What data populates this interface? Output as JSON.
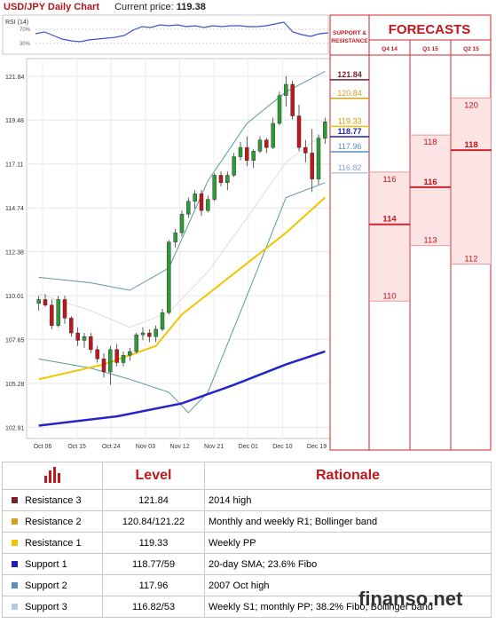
{
  "header": {
    "title": "USD/JPY Daily Chart",
    "price_label": "Current price:",
    "price_value": "119.38"
  },
  "rsi": {
    "label": "RSI (14)",
    "ticks": [
      "70%",
      "30%"
    ]
  },
  "colors": {
    "resistance3": "#7b1e2e",
    "resistance2": "#d4a017",
    "resistance1": "#f2c400",
    "support1": "#1f1fbf",
    "support2": "#5b8fbf",
    "support3": "#b8c8e0",
    "forecast_line": "#d0252b",
    "forecast_fill": "#fde4e4"
  },
  "chart_data": {
    "type": "candlestick",
    "y_ticks": [
      "121.84",
      "119.48",
      "117.11",
      "114.74",
      "112.38",
      "110.01",
      "107.65",
      "105.28",
      "102.91"
    ],
    "x_ticks": [
      "Oct 06",
      "Oct 15",
      "Oct 24",
      "Nov 03",
      "Nov 12",
      "Nov 21",
      "Dec 01",
      "Dec 10",
      "Dec 19"
    ],
    "ylim": [
      102.5,
      122.6
    ],
    "candles": [
      [
        109.6,
        110.0,
        109.2,
        109.8
      ],
      [
        109.8,
        110.1,
        109.4,
        109.5
      ],
      [
        109.5,
        109.8,
        108.2,
        108.4
      ],
      [
        108.4,
        110.0,
        108.3,
        109.8
      ],
      [
        109.8,
        110.0,
        108.5,
        108.8
      ],
      [
        108.8,
        108.9,
        107.8,
        108.0
      ],
      [
        108.0,
        108.3,
        107.3,
        107.6
      ],
      [
        107.6,
        108.0,
        107.2,
        107.8
      ],
      [
        107.8,
        108.0,
        106.9,
        107.1
      ],
      [
        107.1,
        107.3,
        106.4,
        106.6
      ],
      [
        106.6,
        106.9,
        105.6,
        105.9
      ],
      [
        105.9,
        107.3,
        105.2,
        107.1
      ],
      [
        107.1,
        107.4,
        106.2,
        106.4
      ],
      [
        106.4,
        107.0,
        106.2,
        106.8
      ],
      [
        106.8,
        107.2,
        106.5,
        107.0
      ],
      [
        107.0,
        108.0,
        106.9,
        107.9
      ],
      [
        107.9,
        108.3,
        107.6,
        108.0
      ],
      [
        108.0,
        108.2,
        107.5,
        107.8
      ],
      [
        107.8,
        108.4,
        107.5,
        108.2
      ],
      [
        108.2,
        109.3,
        108.1,
        109.1
      ],
      [
        109.1,
        113.0,
        109.0,
        112.9
      ],
      [
        112.9,
        113.6,
        112.6,
        113.4
      ],
      [
        113.4,
        114.6,
        113.2,
        114.4
      ],
      [
        114.4,
        115.3,
        114.2,
        115.1
      ],
      [
        115.1,
        115.7,
        114.7,
        115.5
      ],
      [
        115.5,
        115.7,
        114.3,
        114.6
      ],
      [
        114.6,
        115.4,
        114.5,
        115.2
      ],
      [
        115.2,
        116.6,
        115.1,
        116.5
      ],
      [
        116.5,
        116.7,
        115.9,
        116.1
      ],
      [
        116.1,
        116.7,
        115.7,
        116.5
      ],
      [
        116.5,
        117.7,
        116.4,
        117.5
      ],
      [
        117.5,
        118.3,
        117.3,
        118.0
      ],
      [
        118.0,
        118.6,
        117.0,
        117.3
      ],
      [
        117.3,
        117.9,
        116.9,
        117.8
      ],
      [
        117.8,
        118.6,
        117.7,
        118.4
      ],
      [
        118.4,
        118.5,
        117.7,
        118.0
      ],
      [
        118.0,
        119.6,
        117.9,
        119.3
      ],
      [
        119.3,
        121.0,
        119.2,
        120.8
      ],
      [
        120.8,
        121.84,
        120.2,
        121.4
      ],
      [
        121.4,
        121.6,
        119.5,
        119.7
      ],
      [
        119.7,
        120.3,
        117.8,
        118.0
      ],
      [
        118.0,
        118.4,
        117.2,
        117.7
      ],
      [
        117.7,
        119.0,
        115.6,
        116.3
      ],
      [
        116.3,
        118.7,
        116.0,
        118.5
      ],
      [
        118.5,
        119.6,
        118.2,
        119.38
      ]
    ],
    "sma50": [
      [
        0,
        105.5
      ],
      [
        10,
        106.3
      ],
      [
        18,
        107.3
      ],
      [
        22,
        109.0
      ],
      [
        30,
        111.2
      ],
      [
        38,
        113.4
      ],
      [
        44,
        115.3
      ]
    ],
    "sma200": [
      [
        0,
        103.0
      ],
      [
        12,
        103.5
      ],
      [
        22,
        104.2
      ],
      [
        30,
        105.2
      ],
      [
        38,
        106.3
      ],
      [
        44,
        107.0
      ]
    ],
    "bb_mid": [
      [
        0,
        110.1
      ],
      [
        8,
        109.2
      ],
      [
        14,
        108.3
      ],
      [
        20,
        109.1
      ],
      [
        26,
        111.3
      ],
      [
        32,
        114.2
      ],
      [
        38,
        117.2
      ],
      [
        44,
        118.8
      ]
    ],
    "bb_upper": [
      [
        0,
        111.0
      ],
      [
        8,
        110.7
      ],
      [
        14,
        110.3
      ],
      [
        20,
        111.5
      ],
      [
        26,
        116.2
      ],
      [
        32,
        119.3
      ],
      [
        38,
        121.0
      ],
      [
        44,
        122.1
      ]
    ],
    "bb_lower": [
      [
        0,
        106.6
      ],
      [
        8,
        106.1
      ],
      [
        14,
        105.5
      ],
      [
        20,
        104.8
      ],
      [
        23,
        103.7
      ],
      [
        26,
        104.8
      ],
      [
        32,
        110.0
      ],
      [
        38,
        115.3
      ],
      [
        44,
        116.1
      ]
    ],
    "sr_levels": [
      {
        "value": 121.84,
        "label": "121.84",
        "color": "#7b1e2e"
      },
      {
        "value": 120.84,
        "label": "120.84",
        "color": "#d4a017"
      },
      {
        "value": 119.33,
        "label": "119.33",
        "color": "#f2c400"
      },
      {
        "value": 118.77,
        "label": "118.77",
        "color": "#1f1fbf"
      },
      {
        "value": 117.96,
        "label": "117.96",
        "color": "#5b8fbf"
      },
      {
        "value": 116.82,
        "label": "116.82",
        "color": "#b8c8e0"
      }
    ]
  },
  "forecasts": {
    "title": "FORECASTS",
    "sr_header": "SUPPORT & RESISTANCE",
    "columns": [
      {
        "label": "Q4 14",
        "high": "116",
        "mid": "114",
        "low": "110",
        "high_v": 116,
        "mid_v": 114,
        "low_v": 110
      },
      {
        "label": "Q1 15",
        "high": "118",
        "mid": "116",
        "low": "113",
        "high_v": 118,
        "mid_v": 116,
        "low_v": 113
      },
      {
        "label": "Q2 15",
        "high": "120",
        "mid": "118",
        "low": "112",
        "high_v": 120,
        "mid_v": 118,
        "low_v": 112
      }
    ]
  },
  "table": {
    "headers": [
      "Level",
      "Rationale"
    ],
    "rows": [
      {
        "name": "Resistance 3",
        "level": "121.84",
        "rationale": "2014 high",
        "color": "#7b1e2e"
      },
      {
        "name": "Resistance 2",
        "level": "120.84/121.22",
        "rationale": "Monthly and weekly R1; Bollinger band",
        "color": "#d4a017"
      },
      {
        "name": "Resistance 1",
        "level": "119.33",
        "rationale": "Weekly PP",
        "color": "#f2c400"
      },
      {
        "name": "Support 1",
        "level": "118.77/59",
        "rationale": "20-day SMA; 23.6% Fibo",
        "color": "#1f1fbf"
      },
      {
        "name": "Support 2",
        "level": "117.96",
        "rationale": "2007 Oct high",
        "color": "#5b8fbf"
      },
      {
        "name": "Support 3",
        "level": "116.82/53",
        "rationale": "Weekly S1; monthly PP; 38.2% Fibo; Bollinger band",
        "color": "#b8c8e0"
      }
    ]
  },
  "watermark": "finanso.net"
}
